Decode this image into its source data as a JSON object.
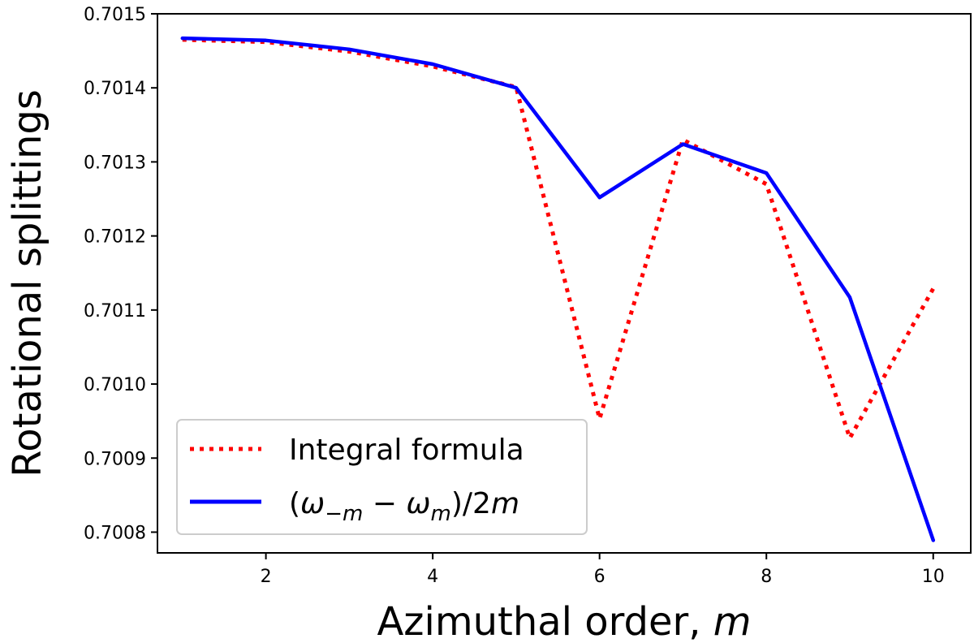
{
  "chart_data": {
    "type": "line",
    "xlabel": "Azimuthal order, ",
    "xlabel_var": "m",
    "ylabel": "Rotational splittings",
    "xlim": [
      0.7,
      10.45
    ],
    "ylim": [
      0.700772,
      0.7015
    ],
    "x_ticks": [
      2,
      4,
      6,
      8,
      10
    ],
    "x_tick_labels": [
      "2",
      "4",
      "6",
      "8",
      "10"
    ],
    "y_ticks": [
      0.7008,
      0.7009,
      0.701,
      0.7011,
      0.7012,
      0.7013,
      0.7014,
      0.7015
    ],
    "y_tick_labels": [
      "0.7008",
      "0.7009",
      "0.7010",
      "0.7011",
      "0.7012",
      "0.7013",
      "0.7014",
      "0.7015"
    ],
    "grid": false,
    "legend_position": "lower-left",
    "series": [
      {
        "name": "Integral formula",
        "color": "#ff0000",
        "style": "dotted",
        "x": [
          1,
          2,
          3,
          4,
          5,
          6,
          7,
          8,
          9,
          10
        ],
        "values": [
          0.701465,
          0.701462,
          0.701449,
          0.701429,
          0.701401,
          0.700953,
          0.70133,
          0.70127,
          0.700927,
          0.701129
        ]
      },
      {
        "name": "(ω−m − ωm)/2m",
        "color": "#0000ff",
        "style": "solid",
        "x": [
          1,
          2,
          3,
          4,
          5,
          6,
          7,
          8,
          9,
          10
        ],
        "values": [
          0.701467,
          0.701464,
          0.701452,
          0.701432,
          0.7014,
          0.701252,
          0.701324,
          0.701285,
          0.701117,
          0.700789
        ]
      }
    ]
  }
}
